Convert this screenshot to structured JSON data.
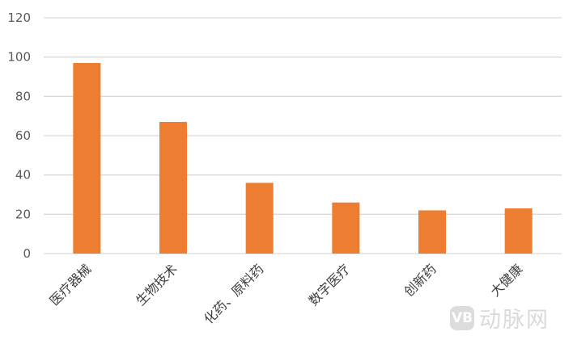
{
  "chart_data": {
    "type": "bar",
    "categories": [
      "医疗器械",
      "生物技术",
      "化药、原料药",
      "数字医疗",
      "创新药",
      "大健康"
    ],
    "values": [
      97,
      67,
      36,
      26,
      22,
      23
    ],
    "ylim": [
      0,
      120
    ],
    "yticks": [
      0,
      20,
      40,
      60,
      80,
      100,
      120
    ],
    "grid": true,
    "bar_color": "#ED7D31",
    "grid_color": "#D9D9D9"
  },
  "watermark": {
    "logo": "VB",
    "text": "动脉网"
  }
}
